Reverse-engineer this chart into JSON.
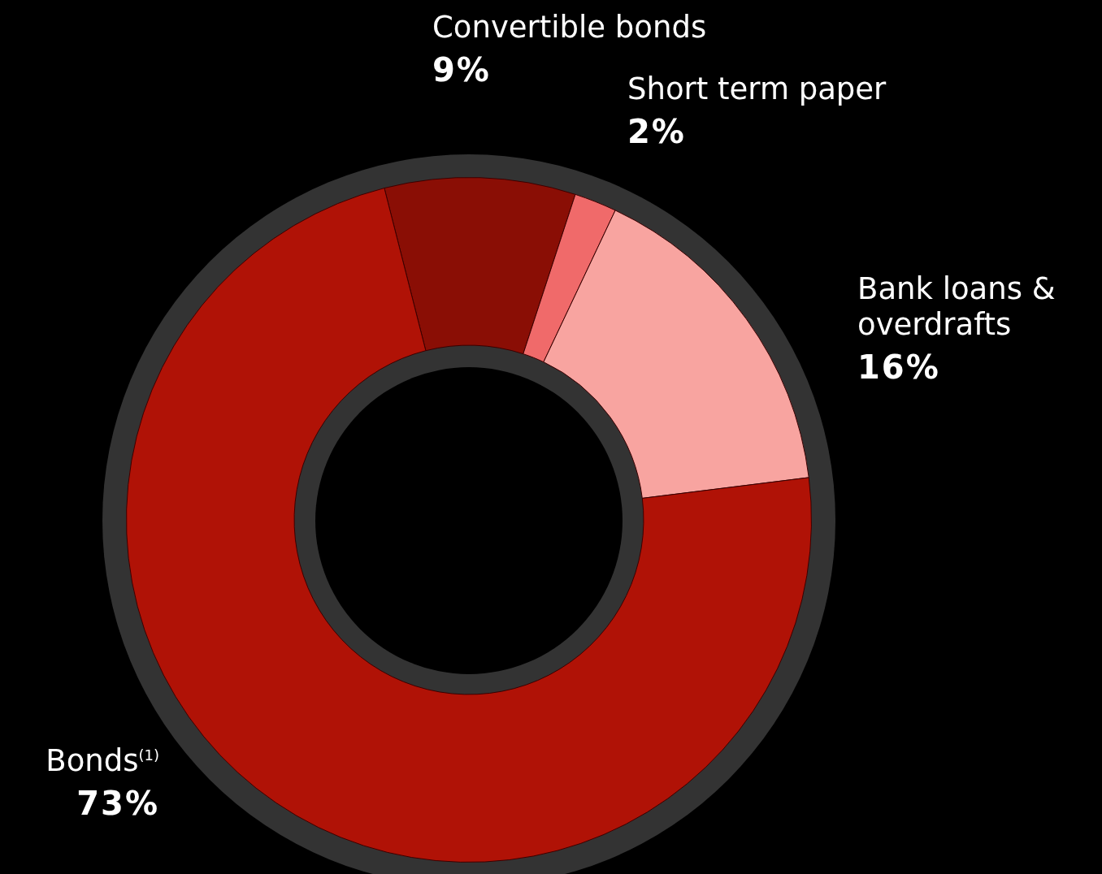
{
  "chart_data": {
    "type": "donut",
    "categories": [
      "Convertible bonds",
      "Short term paper",
      "Bank loans & overdrafts",
      "Bonds$^{(1)}$"
    ],
    "values": [
      9,
      2,
      16,
      73
    ],
    "colors": [
      "#8a0e05",
      "#f06a6a",
      "#f8a4a0",
      "#b01206"
    ],
    "value_labels": [
      "9%",
      "2%",
      "16%",
      "73%"
    ]
  }
}
